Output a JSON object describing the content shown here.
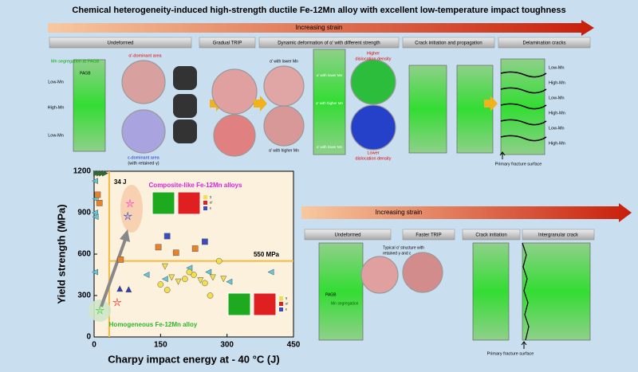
{
  "title": "Chemical heterogeneity-induced high-strength ductile Fe-12Mn alloy with excellent low-temperature impact toughness",
  "top": {
    "arrow": "Increasing strain",
    "stages": [
      "Undeformed",
      "Gradual TRIP",
      "Dynamic  deformation of α' with different strength",
      "Crack initiation and propagation",
      "Delamination cracks"
    ],
    "mn_segregation": "Mn segregation at PAGB",
    "pagb": "PAGB",
    "zones": [
      "Low-Mn",
      "High-Mn",
      "Low-Mn"
    ],
    "alpha_area": "α'-dominant area",
    "eps_area": "ε-dominant area",
    "eps_note": "(with retained γ)",
    "alpha_lower": "α' with lower Mn",
    "alpha_higher": "α' with higher Mn",
    "inner_labels": [
      "α' with lower Mn",
      "α' with higher Mn",
      "α' with lower Mn"
    ],
    "higher_disl": [
      "Higher",
      "dislocation density"
    ],
    "lower_disl": [
      "Lower",
      "dislocation density"
    ],
    "right_zones": [
      "Low-Mn",
      "High-Mn",
      "Low-Mn",
      "High-Mn",
      "Low-Mn",
      "High-Mn"
    ],
    "fracture": "Primary fracture surface"
  },
  "bottom": {
    "arrow": "Increasing strain",
    "stages": [
      "Undeformed",
      "Faster TRIP",
      "Crack initiation",
      "Intergranular crack"
    ],
    "typical": [
      "Typical α' structure with",
      "retained γ and ε"
    ],
    "pagb": "PAGB",
    "mn_segregation": "Mn segregation",
    "fracture": "Primary fracture surface"
  },
  "chart_data": {
    "type": "scatter",
    "xlabel": "Charpy impact energy at - 40 °C (J)",
    "ylabel": "Yield strength (MPa)",
    "xlim": [
      0,
      450
    ],
    "ylim": [
      0,
      1200
    ],
    "xticks": [
      0,
      150,
      300,
      450
    ],
    "yticks": [
      0,
      300,
      600,
      900,
      1200
    ],
    "vline": {
      "value": 34,
      "label": "34 J"
    },
    "hline": {
      "value": 550,
      "label": "550 MPa"
    },
    "annotations": [
      "Composite-like Fe-12Mn alloys",
      "Homogeneous Fe-12Mn alloy"
    ],
    "phase_labels": [
      "γ",
      "α'",
      "ε"
    ],
    "series": [
      {
        "marker": "triangle-left",
        "color": "#5cc9dc",
        "x": [
          2,
          3,
          2,
          3,
          2,
          118,
          160,
          215,
          258,
          305,
          399
        ],
        "values": [
          1130,
          1000,
          900,
          870,
          470,
          450,
          420,
          500,
          470,
          400,
          470
        ]
      },
      {
        "marker": "circle",
        "color": "#f3df4b",
        "x": [
          150,
          165,
          205,
          225,
          250,
          262,
          282,
          215
        ],
        "values": [
          380,
          340,
          420,
          450,
          390,
          300,
          550,
          470
        ]
      },
      {
        "marker": "triangle-down",
        "color": "#f3df4b",
        "x": [
          175,
          190,
          240,
          268,
          292,
          160
        ],
        "values": [
          430,
          400,
          410,
          430,
          420,
          510
        ]
      },
      {
        "marker": "square",
        "color": "#e8822a",
        "x": [
          8,
          12,
          145,
          185,
          228,
          60
        ],
        "values": [
          1030,
          970,
          650,
          610,
          640,
          560
        ]
      },
      {
        "marker": "square",
        "color": "#3b4bc8",
        "x": [
          165,
          250
        ],
        "values": [
          730,
          690
        ]
      },
      {
        "marker": "triangle-up",
        "color": "#2e3fb5",
        "x": [
          58,
          78
        ],
        "values": [
          350,
          345
        ]
      },
      {
        "marker": "star",
        "colors": [
          "#ff33cc",
          "#2233cc",
          "#e02020",
          "#33cc33"
        ],
        "x": [
          81,
          76,
          52,
          13
        ],
        "values": [
          965,
          873,
          249,
          191
        ]
      },
      {
        "marker": "triangle-right",
        "color": "#2d6a2d",
        "x": [
          5,
          12,
          18,
          25
        ],
        "values": [
          1185,
          1185,
          1185,
          1185
        ]
      }
    ]
  }
}
